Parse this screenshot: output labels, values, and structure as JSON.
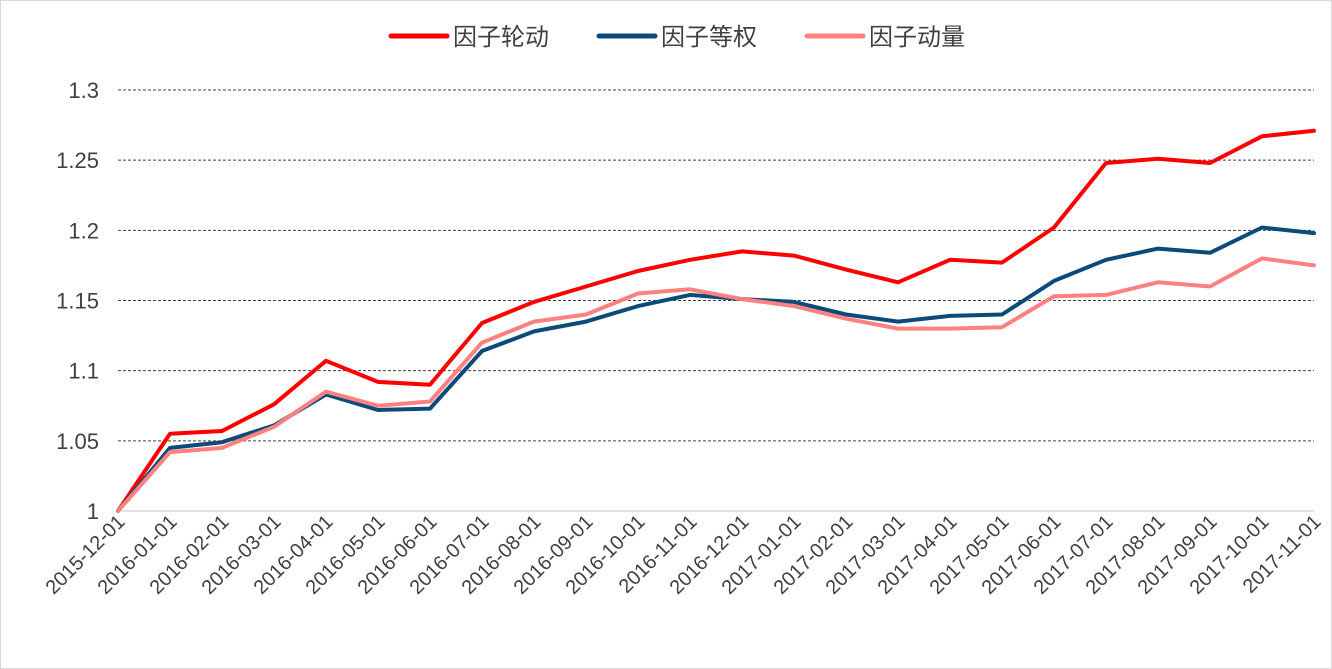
{
  "chart_data": {
    "type": "line",
    "title": "",
    "xlabel": "",
    "ylabel": "",
    "ylim": [
      1,
      1.3
    ],
    "y_ticks": [
      "1",
      "1.05",
      "1.1",
      "1.15",
      "1.2",
      "1.25",
      "1.3"
    ],
    "grid": "horizontal-dashed",
    "legend_position": "top",
    "x": [
      "2015-12-01",
      "2016-01-01",
      "2016-02-01",
      "2016-03-01",
      "2016-04-01",
      "2016-05-01",
      "2016-06-01",
      "2016-07-01",
      "2016-08-01",
      "2016-09-01",
      "2016-10-01",
      "2016-11-01",
      "2016-12-01",
      "2017-01-01",
      "2017-02-01",
      "2017-03-01",
      "2017-04-01",
      "2017-05-01",
      "2017-06-01",
      "2017-07-01",
      "2017-08-01",
      "2017-09-01",
      "2017-10-01",
      "2017-11-01"
    ],
    "series": [
      {
        "name": "因子轮动",
        "color": "#ff0000",
        "values": [
          1.0,
          1.055,
          1.057,
          1.076,
          1.107,
          1.092,
          1.09,
          1.134,
          1.149,
          1.16,
          1.171,
          1.179,
          1.185,
          1.182,
          1.172,
          1.163,
          1.179,
          1.177,
          1.202,
          1.248,
          1.251,
          1.248,
          1.267,
          1.271
        ]
      },
      {
        "name": "因子等权",
        "color": "#0b4a7a",
        "values": [
          1.0,
          1.045,
          1.049,
          1.061,
          1.083,
          1.072,
          1.073,
          1.114,
          1.128,
          1.135,
          1.146,
          1.154,
          1.151,
          1.149,
          1.14,
          1.135,
          1.139,
          1.14,
          1.164,
          1.179,
          1.187,
          1.184,
          1.202,
          1.198
        ]
      },
      {
        "name": "因子动量",
        "color": "#ff8080",
        "values": [
          1.0,
          1.042,
          1.045,
          1.06,
          1.085,
          1.075,
          1.078,
          1.12,
          1.135,
          1.14,
          1.155,
          1.158,
          1.151,
          1.146,
          1.137,
          1.13,
          1.13,
          1.131,
          1.153,
          1.154,
          1.163,
          1.16,
          1.18,
          1.175
        ]
      }
    ]
  }
}
